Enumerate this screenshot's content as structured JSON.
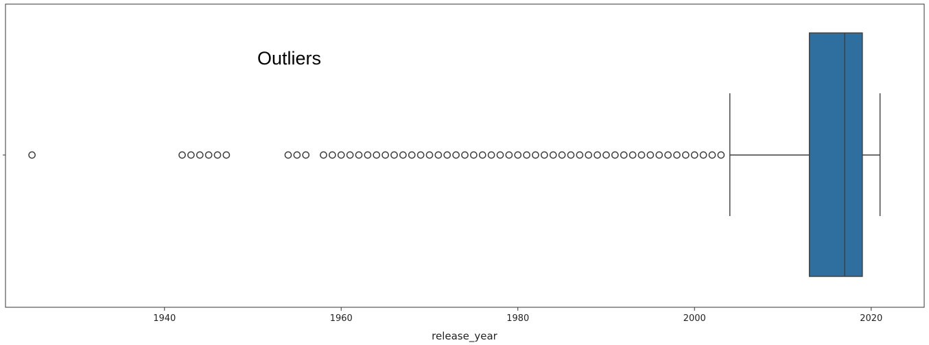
{
  "chart_data": {
    "type": "boxplot",
    "orientation": "horizontal",
    "xlabel": "release_year",
    "ylabel": "",
    "xlim": [
      1922,
      2026
    ],
    "xticks": [
      1940,
      1960,
      1980,
      2000,
      2020
    ],
    "grid": false,
    "annotation": "Outliers",
    "box": {
      "whisker_low": 2004,
      "q1": 2013,
      "median": 2017,
      "q3": 2019,
      "whisker_high": 2021
    },
    "outliers": [
      1925,
      1942,
      1943,
      1944,
      1945,
      1946,
      1947,
      1954,
      1955,
      1956,
      1958,
      1959,
      1960,
      1961,
      1962,
      1963,
      1964,
      1965,
      1966,
      1967,
      1968,
      1969,
      1970,
      1971,
      1972,
      1973,
      1974,
      1975,
      1976,
      1977,
      1978,
      1979,
      1980,
      1981,
      1982,
      1983,
      1984,
      1985,
      1986,
      1987,
      1988,
      1989,
      1990,
      1991,
      1992,
      1993,
      1994,
      1995,
      1996,
      1997,
      1998,
      1999,
      2000,
      2001,
      2002,
      2003
    ],
    "colors": {
      "box_fill": "#2e6f9f",
      "lines": "#3d3d3d",
      "axes": "#333333"
    }
  }
}
